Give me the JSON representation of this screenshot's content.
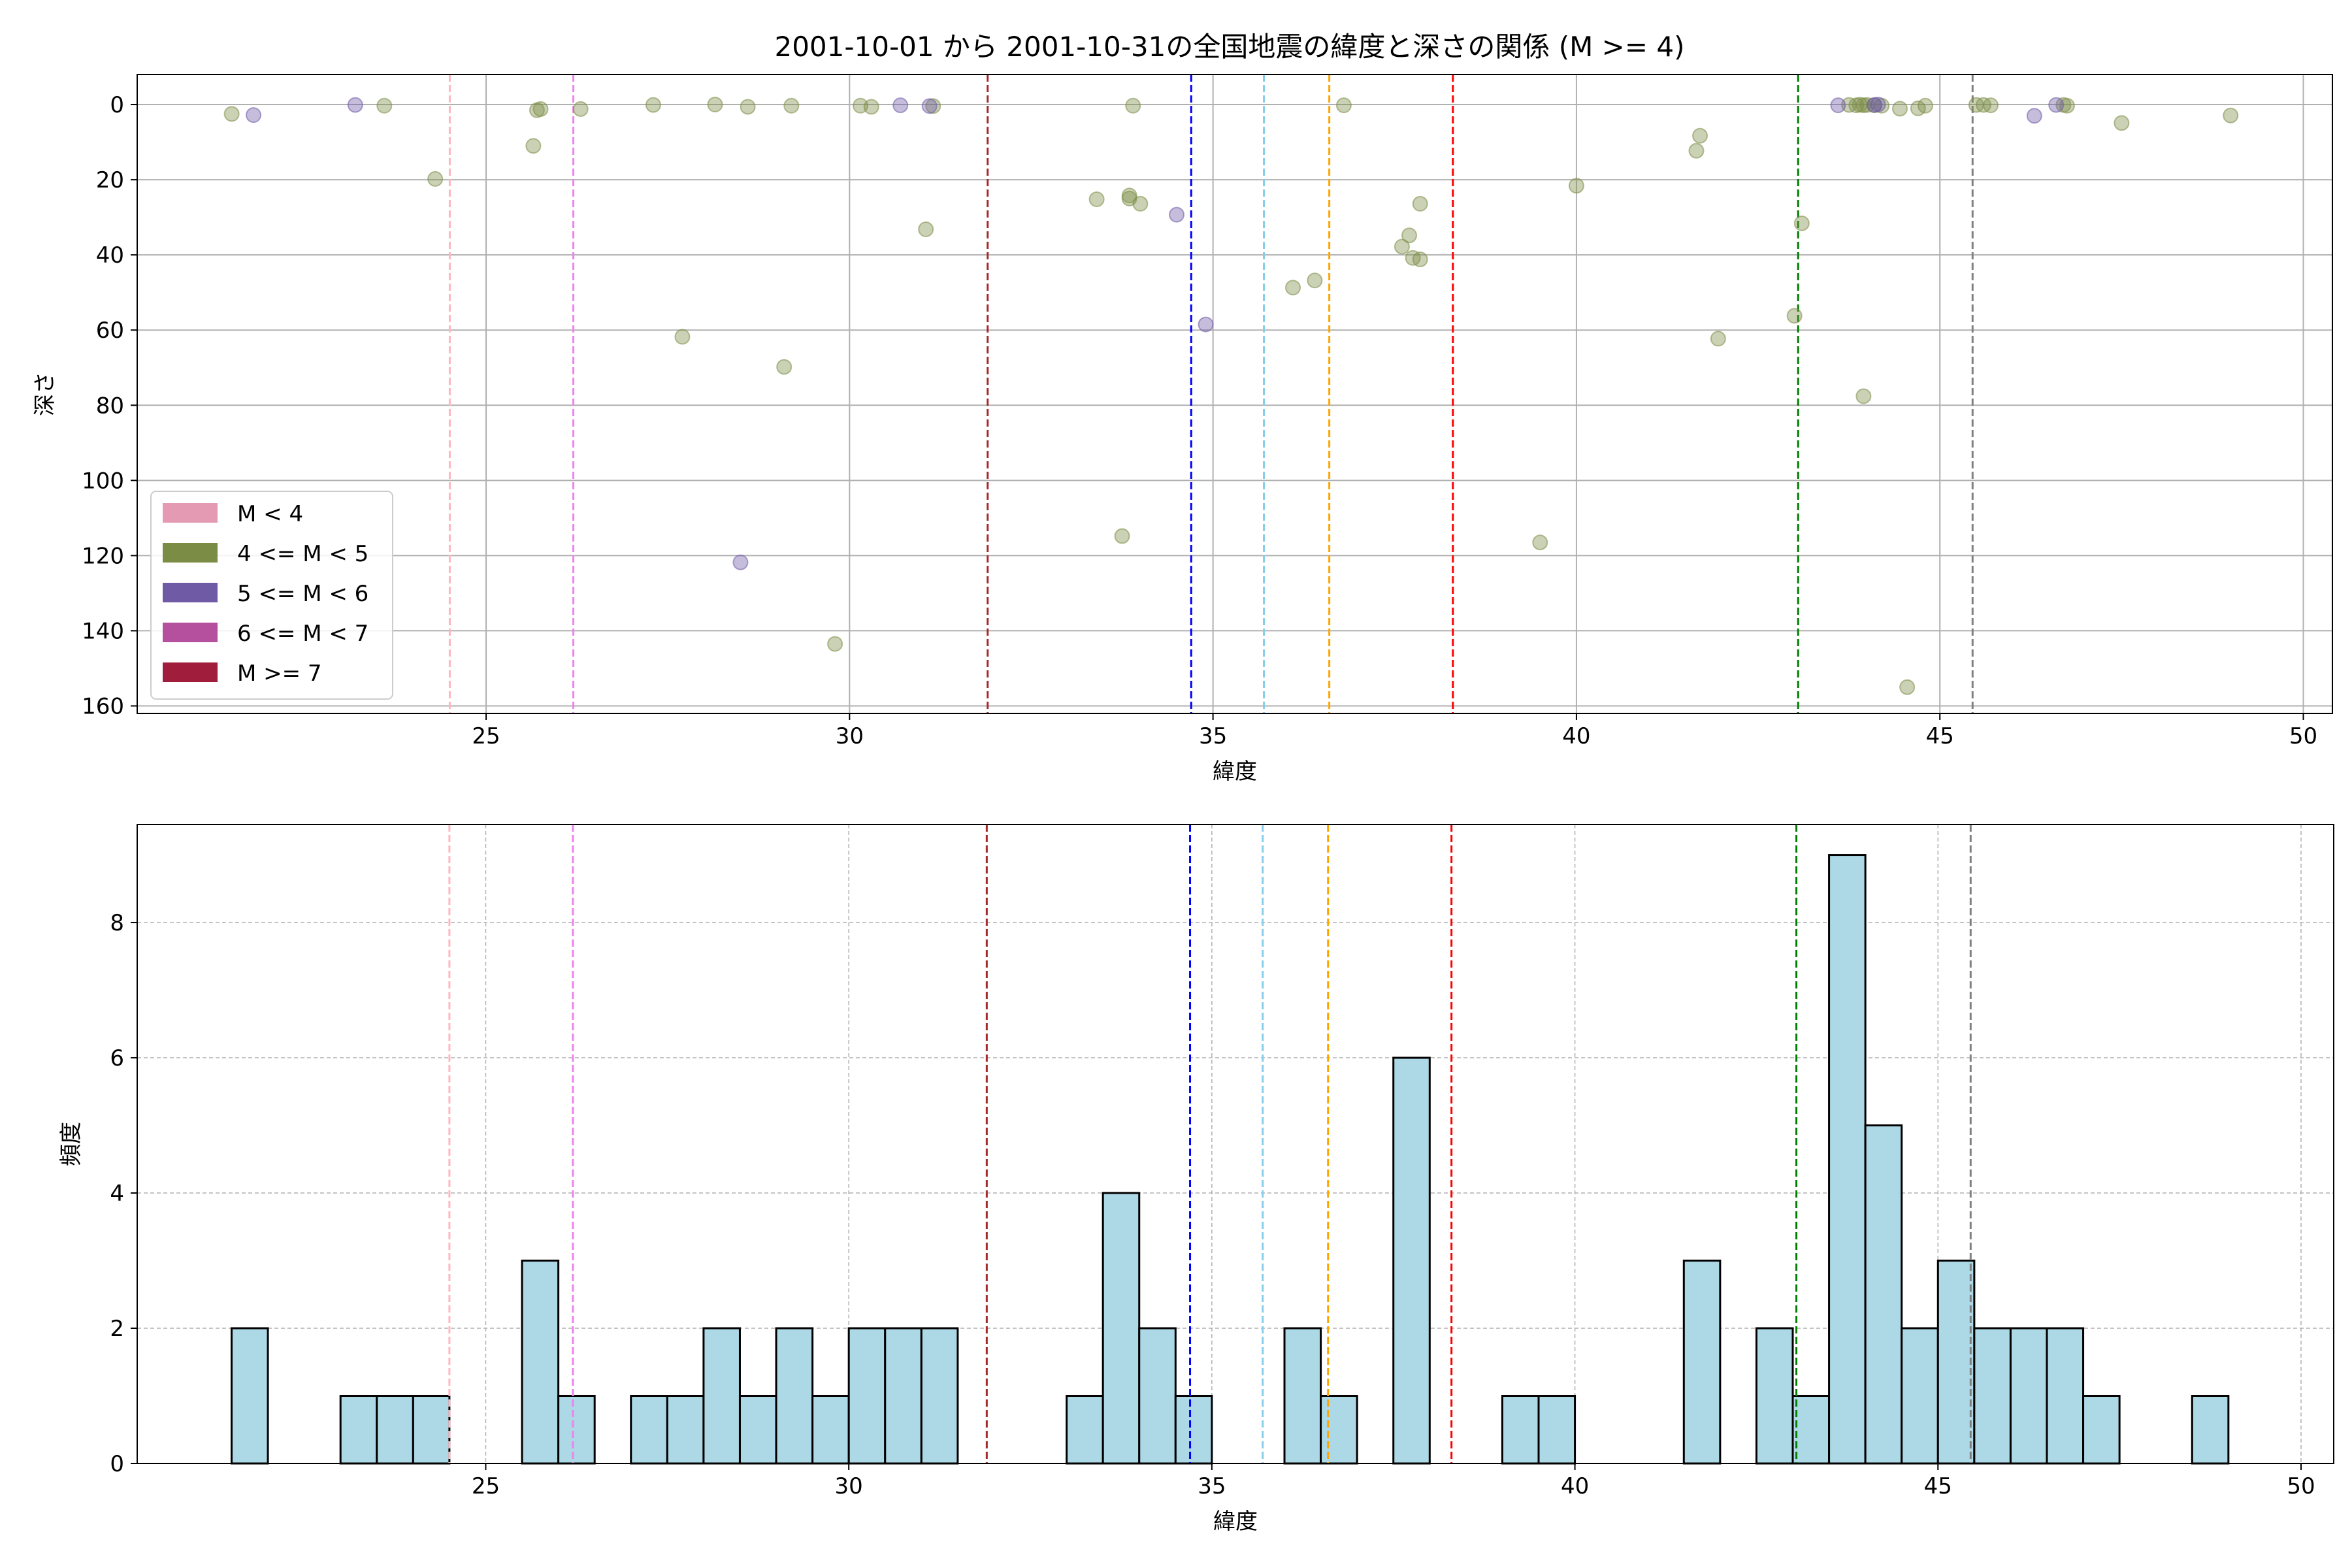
{
  "figure": {
    "title": "2001-10-01 から 2001-10-31の全国地震の緯度と深さの関係 (M >= 4)"
  },
  "colors": {
    "m4_5": "#7b8c45",
    "m5_6": "#6f5aa6",
    "hist_fill": "#add8e6",
    "grid": "#b0b0b0"
  },
  "legend": {
    "placement": "lower-left",
    "items": [
      {
        "label": "M < 4",
        "color": "#e59ab4"
      },
      {
        "label": "4 <= M < 5",
        "color": "#7b8c45"
      },
      {
        "label": "5 <= M < 6",
        "color": "#6f5aa6"
      },
      {
        "label": "6 <= M < 7",
        "color": "#b4509e"
      },
      {
        "label": "M >= 7",
        "color": "#a01e3c"
      }
    ]
  },
  "reference_lines": [
    {
      "x": 24.5,
      "color": "#ffb6c1"
    },
    {
      "x": 26.2,
      "color": "#ee82ee"
    },
    {
      "x": 31.9,
      "color": "#a52a2a"
    },
    {
      "x": 34.7,
      "color": "#0000ff"
    },
    {
      "x": 35.7,
      "color": "#87ceeb"
    },
    {
      "x": 36.6,
      "color": "#ffa500"
    },
    {
      "x": 38.3,
      "color": "#ff0000"
    },
    {
      "x": 43.05,
      "color": "#008000"
    },
    {
      "x": 45.45,
      "color": "#808080"
    }
  ],
  "chart_data": [
    {
      "type": "scatter",
      "title": "2001-10-01 から 2001-10-31の全国地震の緯度と深さの関係 (M >= 4)",
      "xlabel": "緯度",
      "ylabel": "深さ",
      "xlim": [
        20.2,
        50.4
      ],
      "ylim": [
        162,
        -8
      ],
      "y_inverted": true,
      "grid": true,
      "xticks": [
        25,
        30,
        35,
        40,
        45,
        50
      ],
      "yticks": [
        0,
        20,
        40,
        60,
        80,
        100,
        120,
        140,
        160
      ],
      "series": [
        {
          "name": "4 <= M < 5",
          "points": [
            [
              21.5,
              2.5
            ],
            [
              23.6,
              0.3
            ],
            [
              24.3,
              19.8
            ],
            [
              25.7,
              1.5
            ],
            [
              25.75,
              1.2
            ],
            [
              25.65,
              11
            ],
            [
              26.3,
              1.2
            ],
            [
              27.3,
              0.1
            ],
            [
              27.7,
              61.8
            ],
            [
              28.15,
              0.0
            ],
            [
              28.6,
              0.6
            ],
            [
              29.1,
              69.8
            ],
            [
              29.2,
              0.3
            ],
            [
              29.8,
              143.5
            ],
            [
              30.15,
              0.3
            ],
            [
              30.3,
              0.6
            ],
            [
              31.05,
              33.2
            ],
            [
              31.15,
              0.4
            ],
            [
              33.4,
              25.2
            ],
            [
              33.75,
              114.8
            ],
            [
              33.85,
              24.2
            ],
            [
              33.85,
              25
            ],
            [
              33.9,
              0.3
            ],
            [
              34.0,
              26.4
            ],
            [
              36.1,
              48.7
            ],
            [
              36.4,
              46.8
            ],
            [
              36.8,
              0.2
            ],
            [
              37.6,
              37.8
            ],
            [
              37.7,
              34.8
            ],
            [
              37.75,
              40.8
            ],
            [
              37.85,
              41.2
            ],
            [
              37.85,
              26.4
            ],
            [
              39.5,
              116.5
            ],
            [
              40.0,
              21.6
            ],
            [
              41.7,
              8.3
            ],
            [
              41.65,
              12.3
            ],
            [
              41.95,
              62.3
            ],
            [
              43.0,
              56.2
            ],
            [
              43.1,
              31.6
            ],
            [
              43.75,
              0.1
            ],
            [
              43.85,
              0.2
            ],
            [
              43.9,
              0.05
            ],
            [
              43.95,
              0.2
            ],
            [
              44.0,
              0.1
            ],
            [
              43.95,
              77.6
            ],
            [
              44.1,
              0.2
            ],
            [
              44.2,
              0.3
            ],
            [
              44.45,
              1.1
            ],
            [
              44.55,
              155
            ],
            [
              44.7,
              1.0
            ],
            [
              44.8,
              0.3
            ],
            [
              45.5,
              0.1
            ],
            [
              45.6,
              0.1
            ],
            [
              45.7,
              0.2
            ],
            [
              46.7,
              0.1
            ],
            [
              46.75,
              0.3
            ],
            [
              47.5,
              4.9
            ],
            [
              49.0,
              2.9
            ]
          ]
        },
        {
          "name": "5 <= M < 6",
          "points": [
            [
              21.8,
              2.8
            ],
            [
              23.2,
              0.1
            ],
            [
              28.5,
              121.8
            ],
            [
              30.7,
              0.2
            ],
            [
              31.1,
              0.4
            ],
            [
              34.5,
              29.3
            ],
            [
              34.9,
              58.5
            ],
            [
              43.6,
              0.2
            ],
            [
              44.1,
              0.1
            ],
            [
              44.15,
              0.0
            ],
            [
              46.3,
              3.0
            ],
            [
              46.6,
              0.1
            ]
          ]
        }
      ]
    },
    {
      "type": "bar",
      "subtype": "histogram",
      "xlabel": "緯度",
      "ylabel": "頻度",
      "xlim": [
        20.2,
        50.45
      ],
      "ylim": [
        0,
        9.45
      ],
      "grid": true,
      "grid_style": "dashed",
      "xticks": [
        25,
        30,
        35,
        40,
        45,
        50
      ],
      "yticks": [
        0,
        2,
        4,
        6,
        8
      ],
      "bins": [
        {
          "start": 21.5,
          "end": 22.0,
          "count": 2
        },
        {
          "start": 23.0,
          "end": 23.5,
          "count": 1
        },
        {
          "start": 23.5,
          "end": 24.0,
          "count": 1
        },
        {
          "start": 24.0,
          "end": 24.5,
          "count": 1
        },
        {
          "start": 25.5,
          "end": 26.0,
          "count": 3
        },
        {
          "start": 26.0,
          "end": 26.5,
          "count": 1
        },
        {
          "start": 27.0,
          "end": 27.5,
          "count": 1
        },
        {
          "start": 27.5,
          "end": 28.0,
          "count": 1
        },
        {
          "start": 28.0,
          "end": 28.5,
          "count": 2
        },
        {
          "start": 28.5,
          "end": 29.0,
          "count": 1
        },
        {
          "start": 29.0,
          "end": 29.5,
          "count": 2
        },
        {
          "start": 29.5,
          "end": 30.0,
          "count": 1
        },
        {
          "start": 30.0,
          "end": 30.5,
          "count": 2
        },
        {
          "start": 30.5,
          "end": 31.0,
          "count": 2
        },
        {
          "start": 31.0,
          "end": 31.5,
          "count": 2
        },
        {
          "start": 33.0,
          "end": 33.5,
          "count": 1
        },
        {
          "start": 33.5,
          "end": 34.0,
          "count": 4
        },
        {
          "start": 34.0,
          "end": 34.5,
          "count": 2
        },
        {
          "start": 34.5,
          "end": 35.0,
          "count": 1
        },
        {
          "start": 36.0,
          "end": 36.5,
          "count": 2
        },
        {
          "start": 36.5,
          "end": 37.0,
          "count": 1
        },
        {
          "start": 37.5,
          "end": 38.0,
          "count": 6
        },
        {
          "start": 39.0,
          "end": 39.5,
          "count": 1
        },
        {
          "start": 39.5,
          "end": 40.0,
          "count": 1
        },
        {
          "start": 41.5,
          "end": 42.0,
          "count": 3
        },
        {
          "start": 42.5,
          "end": 43.0,
          "count": 2
        },
        {
          "start": 43.0,
          "end": 43.5,
          "count": 1
        },
        {
          "start": 43.5,
          "end": 44.0,
          "count": 9
        },
        {
          "start": 44.0,
          "end": 44.5,
          "count": 5
        },
        {
          "start": 44.5,
          "end": 45.0,
          "count": 2
        },
        {
          "start": 45.0,
          "end": 45.5,
          "count": 3
        },
        {
          "start": 45.5,
          "end": 46.0,
          "count": 2
        },
        {
          "start": 46.0,
          "end": 46.5,
          "count": 2
        },
        {
          "start": 46.5,
          "end": 47.0,
          "count": 2
        },
        {
          "start": 47.0,
          "end": 47.5,
          "count": 1
        },
        {
          "start": 48.5,
          "end": 49.0,
          "count": 1
        }
      ]
    }
  ]
}
